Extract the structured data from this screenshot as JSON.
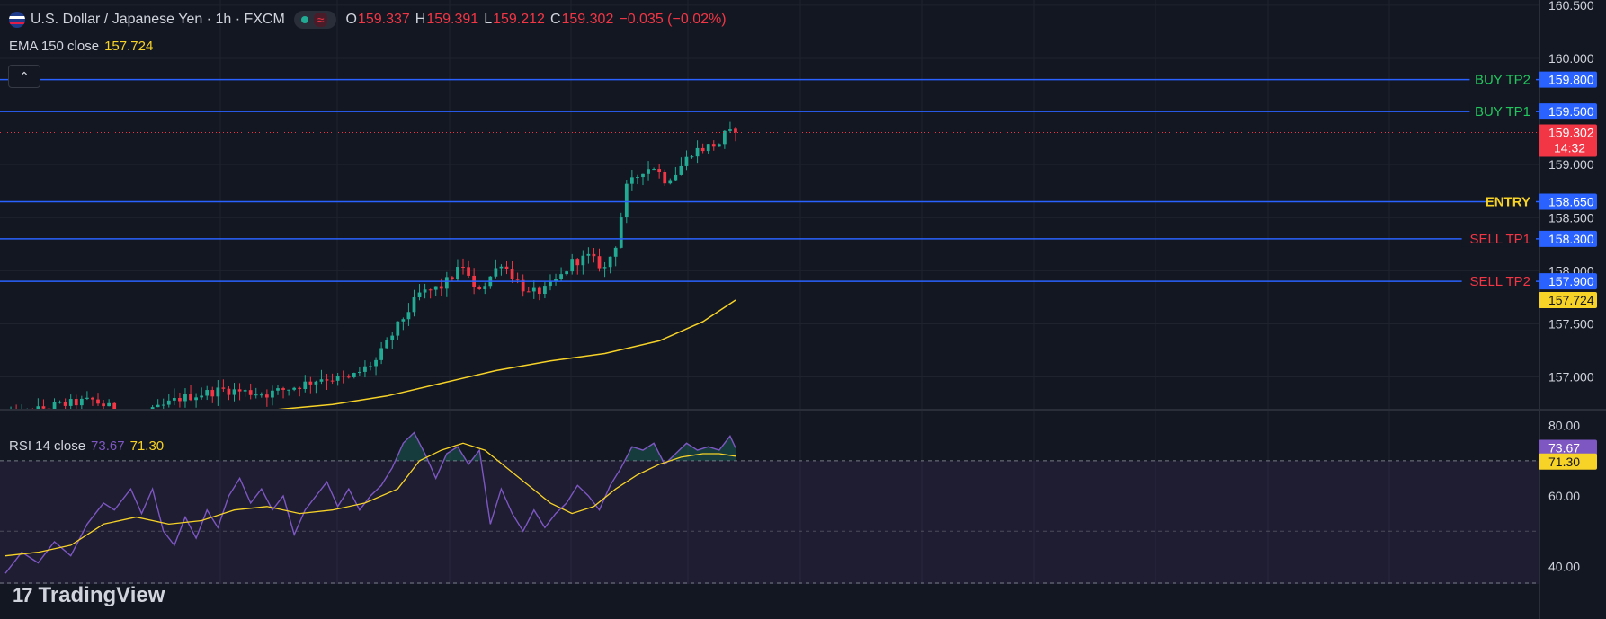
{
  "header": {
    "title": "U.S. Dollar / Japanese Yen · 1h · FXCM",
    "ohlc": {
      "o_label": "O",
      "o": "159.337",
      "h_label": "H",
      "h": "159.391",
      "l_label": "L",
      "l": "159.212",
      "c_label": "C",
      "c": "159.302",
      "change": "−0.035 (−0.02%)"
    },
    "wave_icon": "≈"
  },
  "ema_legend": {
    "label": "EMA 150 close",
    "value": "157.724"
  },
  "collapse_icon": "⌃",
  "rsi_legend": {
    "label": "RSI 14 close",
    "value1": "73.67",
    "value2": "71.30"
  },
  "brand": {
    "mark": "17",
    "name": "TradingView"
  },
  "colors": {
    "background": "#131722",
    "up": "#22ab94",
    "down": "#f23645",
    "level_line": "#2962ff",
    "ema": "#f7d227",
    "rsi": "#7e57c2",
    "rsi_ma": "#f7d227",
    "buy_text": "#22c55e",
    "sell_text": "#f23645",
    "entry_text": "#f7d227"
  },
  "chart_data": [
    {
      "type": "candlestick",
      "symbol": "USDJPY",
      "timeframe": "1h",
      "ylim": [
        156.7,
        160.55
      ],
      "y_ticks": [
        "160.500",
        "160.000",
        "159.500",
        "159.000",
        "158.500",
        "158.000",
        "157.500",
        "157.000"
      ],
      "levels": [
        {
          "label": "BUY TP2",
          "price": "159.800",
          "value": 159.8,
          "kind": "buy"
        },
        {
          "label": "BUY TP1",
          "price": "159.500",
          "value": 159.5,
          "kind": "buy"
        },
        {
          "label": "ENTRY",
          "price": "158.650",
          "value": 158.65,
          "kind": "entry"
        },
        {
          "label": "SELL TP1",
          "price": "158.300",
          "value": 158.3,
          "kind": "sell"
        },
        {
          "label": "SELL TP2",
          "price": "157.900",
          "value": 157.9,
          "kind": "sell"
        }
      ],
      "last_price": {
        "value": 159.302,
        "label": "159.302",
        "countdown": "14:32"
      },
      "ema": {
        "name": "EMA 150 close",
        "last": {
          "value": 157.724,
          "label": "157.724"
        },
        "points": [
          [
            45,
            156.67
          ],
          [
            60,
            156.74
          ],
          [
            70,
            156.82
          ],
          [
            80,
            156.94
          ],
          [
            90,
            157.06
          ],
          [
            100,
            157.15
          ],
          [
            110,
            157.22
          ],
          [
            120,
            157.34
          ],
          [
            128,
            157.52
          ],
          [
            134,
            157.724
          ]
        ]
      },
      "close_anchors": [
        [
          0,
          156.6
        ],
        [
          8,
          156.72
        ],
        [
          16,
          156.78
        ],
        [
          24,
          156.6
        ],
        [
          32,
          156.8
        ],
        [
          40,
          156.88
        ],
        [
          48,
          156.84
        ],
        [
          54,
          156.92
        ],
        [
          58,
          156.99
        ],
        [
          63,
          156.98
        ],
        [
          68,
          157.15
        ],
        [
          72,
          157.48
        ],
        [
          76,
          157.78
        ],
        [
          80,
          157.85
        ],
        [
          84,
          158.05
        ],
        [
          86,
          157.82
        ],
        [
          88,
          157.88
        ],
        [
          91,
          158.08
        ],
        [
          94,
          157.9
        ],
        [
          96,
          157.78
        ],
        [
          99,
          157.82
        ],
        [
          102,
          157.95
        ],
        [
          104,
          158.08
        ],
        [
          107,
          158.13
        ],
        [
          110,
          158.02
        ],
        [
          112,
          158.25
        ],
        [
          114,
          158.78
        ],
        [
          117,
          158.95
        ],
        [
          119,
          158.98
        ],
        [
          121,
          158.86
        ],
        [
          123,
          158.92
        ],
        [
          126,
          159.12
        ],
        [
          129,
          159.17
        ],
        [
          131,
          159.2
        ],
        [
          132,
          159.28
        ],
        [
          134,
          159.302
        ]
      ],
      "n_candles": 135
    },
    {
      "type": "line",
      "name": "RSI 14 close",
      "ylim": [
        35,
        84
      ],
      "y_ticks": [
        "80.00",
        "60.00",
        "40.00"
      ],
      "upper_band": 70,
      "lower_band": 30,
      "last": [
        {
          "value": 73.67,
          "label": "73.67"
        },
        {
          "value": 71.3,
          "label": "71.30"
        }
      ],
      "rsi_points": [
        [
          0,
          38
        ],
        [
          3,
          44
        ],
        [
          6,
          41
        ],
        [
          9,
          47
        ],
        [
          12,
          43
        ],
        [
          15,
          52
        ],
        [
          18,
          58
        ],
        [
          20,
          56
        ],
        [
          23,
          62
        ],
        [
          25,
          55
        ],
        [
          27,
          62
        ],
        [
          29,
          50
        ],
        [
          31,
          46
        ],
        [
          33,
          54
        ],
        [
          35,
          48
        ],
        [
          37,
          56
        ],
        [
          39,
          51
        ],
        [
          41,
          60
        ],
        [
          43,
          65
        ],
        [
          45,
          58
        ],
        [
          47,
          62
        ],
        [
          49,
          56
        ],
        [
          51,
          60
        ],
        [
          53,
          49
        ],
        [
          55,
          56
        ],
        [
          57,
          60
        ],
        [
          59,
          64
        ],
        [
          61,
          57
        ],
        [
          63,
          62
        ],
        [
          65,
          56
        ],
        [
          67,
          60
        ],
        [
          69,
          63
        ],
        [
          71,
          68
        ],
        [
          73,
          75
        ],
        [
          75,
          78
        ],
        [
          77,
          72
        ],
        [
          79,
          65
        ],
        [
          81,
          72
        ],
        [
          83,
          74
        ],
        [
          85,
          69
        ],
        [
          87,
          73
        ],
        [
          89,
          52
        ],
        [
          91,
          62
        ],
        [
          93,
          55
        ],
        [
          95,
          50
        ],
        [
          97,
          56
        ],
        [
          99,
          51
        ],
        [
          101,
          55
        ],
        [
          103,
          58
        ],
        [
          105,
          63
        ],
        [
          107,
          60
        ],
        [
          109,
          56
        ],
        [
          111,
          63
        ],
        [
          113,
          68
        ],
        [
          115,
          74
        ],
        [
          117,
          73
        ],
        [
          119,
          75
        ],
        [
          121,
          69
        ],
        [
          123,
          72
        ],
        [
          125,
          75
        ],
        [
          127,
          73
        ],
        [
          129,
          74
        ],
        [
          131,
          73
        ],
        [
          133,
          77
        ],
        [
          134,
          73.67
        ]
      ],
      "ma_points": [
        [
          0,
          43
        ],
        [
          6,
          44
        ],
        [
          12,
          46
        ],
        [
          18,
          52
        ],
        [
          24,
          54
        ],
        [
          30,
          52
        ],
        [
          36,
          53
        ],
        [
          42,
          56
        ],
        [
          48,
          57
        ],
        [
          54,
          55
        ],
        [
          60,
          56
        ],
        [
          66,
          58
        ],
        [
          72,
          62
        ],
        [
          76,
          70
        ],
        [
          80,
          73
        ],
        [
          84,
          75
        ],
        [
          88,
          73
        ],
        [
          92,
          68
        ],
        [
          96,
          63
        ],
        [
          100,
          58
        ],
        [
          104,
          55
        ],
        [
          108,
          57
        ],
        [
          112,
          62
        ],
        [
          116,
          66
        ],
        [
          120,
          69
        ],
        [
          124,
          71
        ],
        [
          128,
          72
        ],
        [
          131,
          72
        ],
        [
          134,
          71.3
        ]
      ]
    }
  ]
}
